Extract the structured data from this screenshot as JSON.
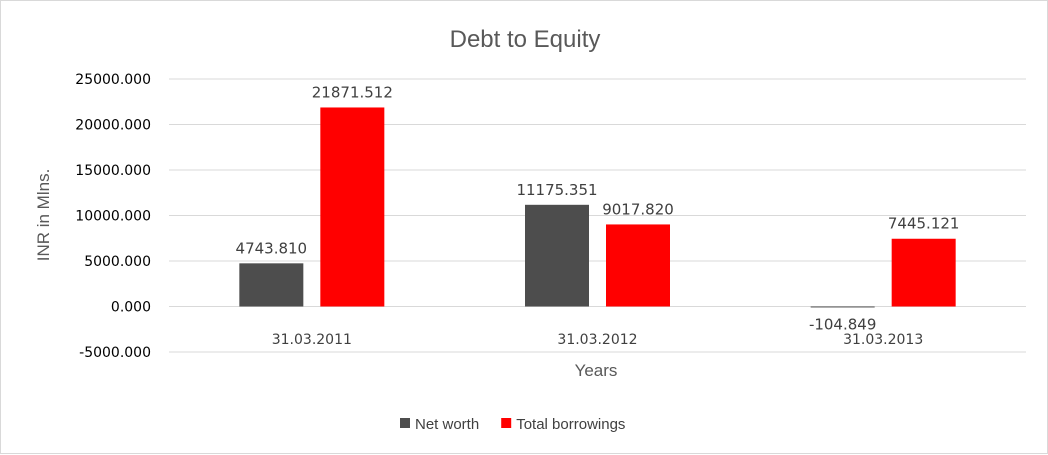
{
  "chart_data": {
    "type": "bar",
    "title": "Debt to Equity",
    "xlabel": "Years",
    "ylabel": "INR in Mlns.",
    "categories": [
      "31.03.2011",
      "31.03.2012",
      "31.03.2013"
    ],
    "series": [
      {
        "name": "Net worth",
        "color": "#4d4d4d",
        "values": [
          4743.81,
          11175.351,
          -104.849
        ],
        "labels": [
          "4743.810",
          "11175.351",
          "-104.849"
        ]
      },
      {
        "name": "Total borrowings",
        "color": "#ff0000",
        "values": [
          21871.512,
          9017.82,
          7445.121
        ],
        "labels": [
          "21871.512",
          "9017.820",
          "7445.121"
        ]
      }
    ],
    "ylim": [
      -5000,
      25000
    ],
    "yticks": [
      -5000,
      0,
      5000,
      10000,
      15000,
      20000,
      25000
    ],
    "ytick_labels": [
      "-5000.000",
      "0.000",
      "5000.000",
      "10000.000",
      "15000.000",
      "20000.000",
      "25000.000"
    ],
    "grid": true,
    "legend_position": "bottom",
    "gridline_color": "#d9d9d9"
  }
}
